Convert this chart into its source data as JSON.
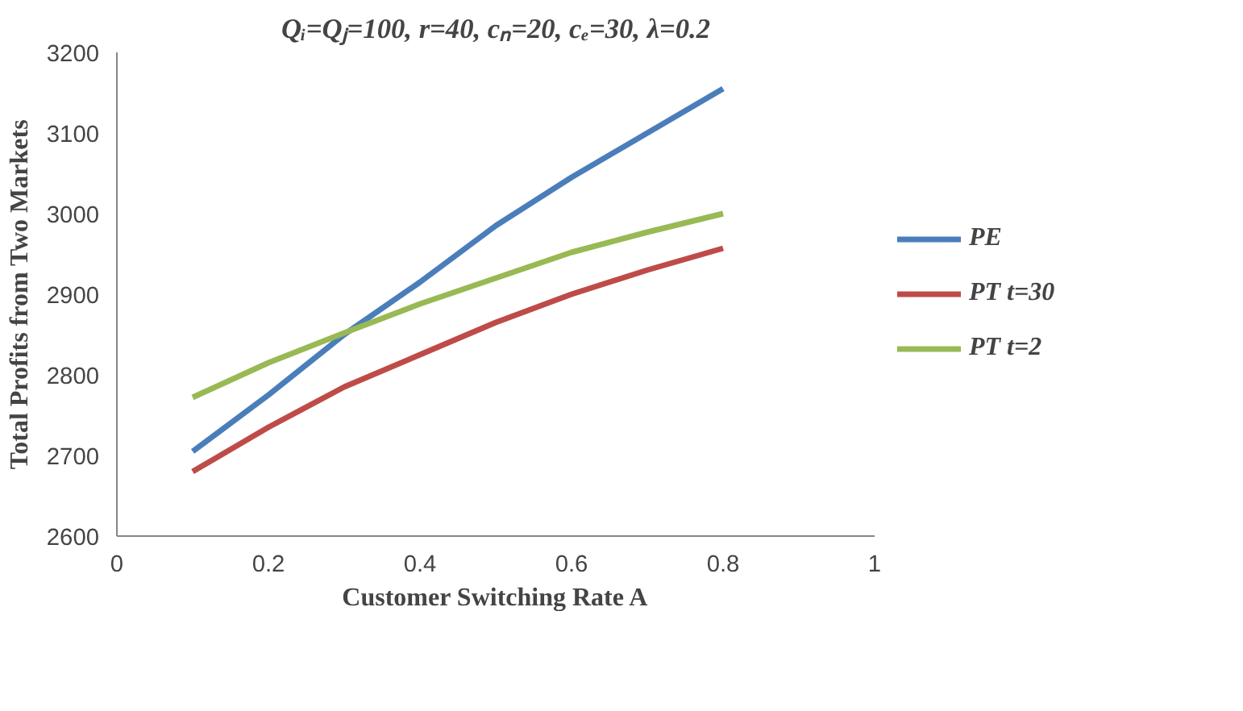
{
  "chart_data": {
    "type": "line",
    "title": "Qᵢ=Qⱼ=100, r=40, cₙ=20, cₑ=30, λ=0.2",
    "xlabel": "Customer Switching Rate A",
    "ylabel": "Total Profits from Two Markets",
    "x": [
      0.1,
      0.2,
      0.3,
      0.4,
      0.5,
      0.6,
      0.7,
      0.8
    ],
    "series": [
      {
        "name": "PE",
        "color": "#4a7ebb",
        "values": [
          2705,
          2775,
          2850,
          2915,
          2985,
          3045,
          3100,
          3155
        ]
      },
      {
        "name": "PT t=30",
        "color": "#be4b48",
        "values": [
          2680,
          2735,
          2785,
          2825,
          2865,
          2900,
          2930,
          2957
        ]
      },
      {
        "name": "PT t=2",
        "color": "#98b954",
        "values": [
          2772,
          2815,
          2852,
          2888,
          2920,
          2952,
          2977,
          3000
        ]
      }
    ],
    "xlim": [
      0,
      1
    ],
    "xticks": [
      0,
      0.2,
      0.4,
      0.6,
      0.8,
      1
    ],
    "ylim": [
      2600,
      3200
    ],
    "yticks": [
      2600,
      2700,
      2800,
      2900,
      3000,
      3100,
      3200
    ],
    "grid": false,
    "legend": "right",
    "marker": "none",
    "line_style": "solid"
  }
}
